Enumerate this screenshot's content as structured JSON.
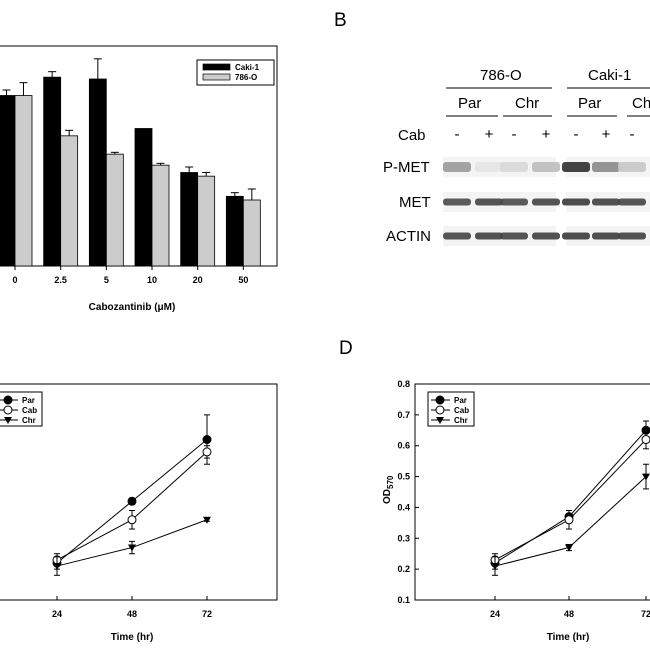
{
  "panels": {
    "b": "B",
    "d": "D"
  },
  "chart_data": [
    {
      "id": "A",
      "type": "bar",
      "title": "",
      "xlabel": "Cabozantinib (μM)",
      "ylabel": "",
      "categories": [
        "0",
        "2.5",
        "5",
        "10",
        "20",
        "50"
      ],
      "ylim": [
        0,
        1.2
      ],
      "series": [
        {
          "name": "Caki-1",
          "color": "#000000",
          "values": [
            0.93,
            1.03,
            1.02,
            0.75,
            0.51,
            0.38
          ],
          "errors": [
            0.03,
            0.03,
            0.11,
            0.0,
            0.03,
            0.02
          ]
        },
        {
          "name": "786-O",
          "color": "#cccccc",
          "values": [
            0.93,
            0.71,
            0.61,
            0.55,
            0.49,
            0.36
          ],
          "errors": [
            0.07,
            0.03,
            0.01,
            0.01,
            0.02,
            0.06
          ]
        }
      ],
      "legend_position": "top-right"
    },
    {
      "id": "C",
      "type": "line",
      "title": "",
      "xlabel": "Time (hr)",
      "ylabel": "",
      "x": [
        "24",
        "48",
        "72"
      ],
      "ylim": [
        0.1,
        0.8
      ],
      "series": [
        {
          "name": "Par",
          "marker": "filled-circle",
          "values": [
            0.22,
            0.42,
            0.62
          ],
          "errors": [
            0.02,
            0.01,
            0.08
          ]
        },
        {
          "name": "Cab",
          "marker": "open-circle",
          "values": [
            0.23,
            0.36,
            0.58
          ],
          "errors": [
            0.02,
            0.03,
            0.02
          ]
        },
        {
          "name": "Chr",
          "marker": "filled-triangle-down",
          "values": [
            0.21,
            0.27,
            0.36
          ],
          "errors": [
            0.03,
            0.02,
            0.005
          ]
        }
      ],
      "legend_position": "top-left"
    },
    {
      "id": "D",
      "type": "line",
      "title": "",
      "xlabel": "Time (hr)",
      "ylabel": "OD570",
      "ylabel_main": "OD",
      "ylabel_sub": "570",
      "x": [
        "24",
        "48",
        "72"
      ],
      "ylim": [
        0.1,
        0.8
      ],
      "yticks": [
        "0.1",
        "0.2",
        "0.3",
        "0.4",
        "0.5",
        "0.6",
        "0.7",
        "0.8"
      ],
      "series": [
        {
          "name": "Par",
          "marker": "filled-circle",
          "values": [
            0.22,
            0.37,
            0.65
          ],
          "errors": [
            0.02,
            0.02,
            0.03
          ]
        },
        {
          "name": "Cab",
          "marker": "open-circle",
          "values": [
            0.23,
            0.36,
            0.62
          ],
          "errors": [
            0.02,
            0.03,
            0.03
          ]
        },
        {
          "name": "Chr",
          "marker": "filled-triangle-down",
          "values": [
            0.21,
            0.27,
            0.5
          ],
          "errors": [
            0.03,
            0.01,
            0.04
          ]
        }
      ],
      "legend_position": "top-left"
    }
  ],
  "western_blot": {
    "cell_lines": [
      "786-O",
      "Caki-1"
    ],
    "conditions": [
      "Par",
      "Chr",
      "Par",
      "Ch"
    ],
    "treatment_label": "Cab",
    "treatment_marks": [
      "-",
      "+",
      "-",
      "+",
      "-",
      "+",
      "-"
    ],
    "bands": [
      "P-MET",
      "MET",
      "ACTIN"
    ]
  }
}
